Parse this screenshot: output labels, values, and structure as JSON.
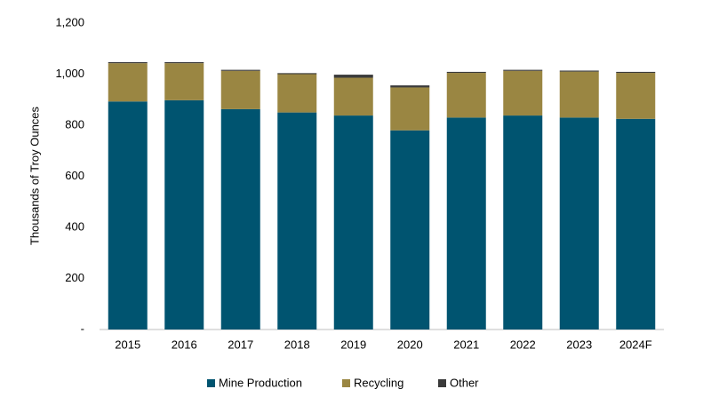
{
  "chart_data": {
    "type": "stacked-bar",
    "y_label": "Thousands of Troy Ounces",
    "categories": [
      "2015",
      "2016",
      "2017",
      "2018",
      "2019",
      "2020",
      "2021",
      "2022",
      "2023",
      "2024F"
    ],
    "series": [
      {
        "name": "Mine Production",
        "color": "#005470",
        "values": [
          893,
          898,
          863,
          850,
          838,
          780,
          830,
          838,
          830,
          825
        ]
      },
      {
        "name": "Recycling",
        "color": "#9a8642",
        "values": [
          150,
          145,
          150,
          150,
          148,
          168,
          175,
          175,
          180,
          180
        ]
      },
      {
        "name": "Other",
        "color": "#3a3a3a",
        "values": [
          4,
          4,
          4,
          4,
          12,
          8,
          4,
          4,
          4,
          4
        ]
      }
    ],
    "ylim": [
      0,
      1200
    ],
    "yticks": [
      {
        "value": 0,
        "label": "-"
      },
      200,
      400,
      600,
      800,
      {
        "value": 1000,
        "label": "1,000"
      },
      {
        "value": 1200,
        "label": "1,200"
      }
    ],
    "grid": false
  }
}
